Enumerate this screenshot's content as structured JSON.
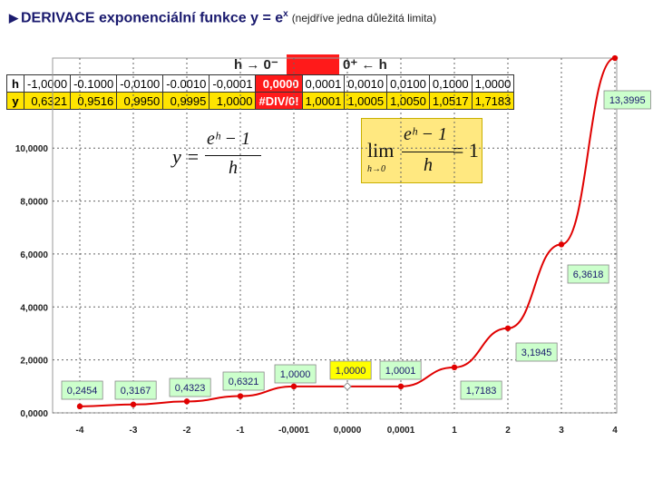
{
  "header": {
    "title_main": "DERIVACE exponenciální funkce y = e",
    "title_sup": "x",
    "title_sub": "(nejdříve jedna důležitá limita)",
    "left_label": "h → 0⁻",
    "right_label": "0⁺ ← h"
  },
  "table": {
    "row_labels": [
      "h",
      "y"
    ],
    "h": [
      "-1,0000",
      "-0.1000",
      "-0,0100",
      "-0.0010",
      "-0,0001",
      "0,0000",
      "0,0001",
      "0,0010",
      "0,0100",
      "0,1000",
      "1,0000"
    ],
    "y": [
      "0,6321",
      "0,9516",
      "0,9950",
      "0,9995",
      "1,0000",
      "#DIV/0!",
      "1,0001",
      "1,0005",
      "1,0050",
      "1,0517",
      "1,7183"
    ]
  },
  "formulas": {
    "f1_lhs": "y =",
    "f1_num": "eʰ − 1",
    "f1_den": "h",
    "f2_lim": "lim",
    "f2_under": "h→0",
    "f2_num": "eʰ − 1",
    "f2_den": "h",
    "f2_rhs": "= 1"
  },
  "colors": {
    "line": "#e00000",
    "label_bg": "#ccffcc",
    "highlight_bg": "#ffff00",
    "table_y_bg": "#ffe400",
    "table_sel_bg": "#ff1a1a"
  },
  "chart_data": {
    "type": "line",
    "categories": [
      "-4",
      "-3",
      "-2",
      "-1",
      "-0,0001",
      "0,0000",
      "0,0001",
      "1",
      "2",
      "3",
      "4"
    ],
    "values": [
      0.2454,
      0.3167,
      0.4323,
      0.6321,
      1.0,
      1.0,
      1.0001,
      1.7183,
      3.1945,
      6.3618,
      13.3995
    ],
    "point_labels": [
      "0,2454",
      "0,3167",
      "0,4323",
      "0,6321",
      "1,0000",
      "1,0000",
      "1,0001",
      "1,7183",
      "3,1945",
      "6,3618",
      "13,3995"
    ],
    "highlight_index": 5,
    "y_ticks": [
      "0,0000",
      "2,0000",
      "4,0000",
      "6,0000",
      "8,0000",
      "10,0000"
    ],
    "ylim": [
      0,
      13.4
    ],
    "grid": true
  }
}
